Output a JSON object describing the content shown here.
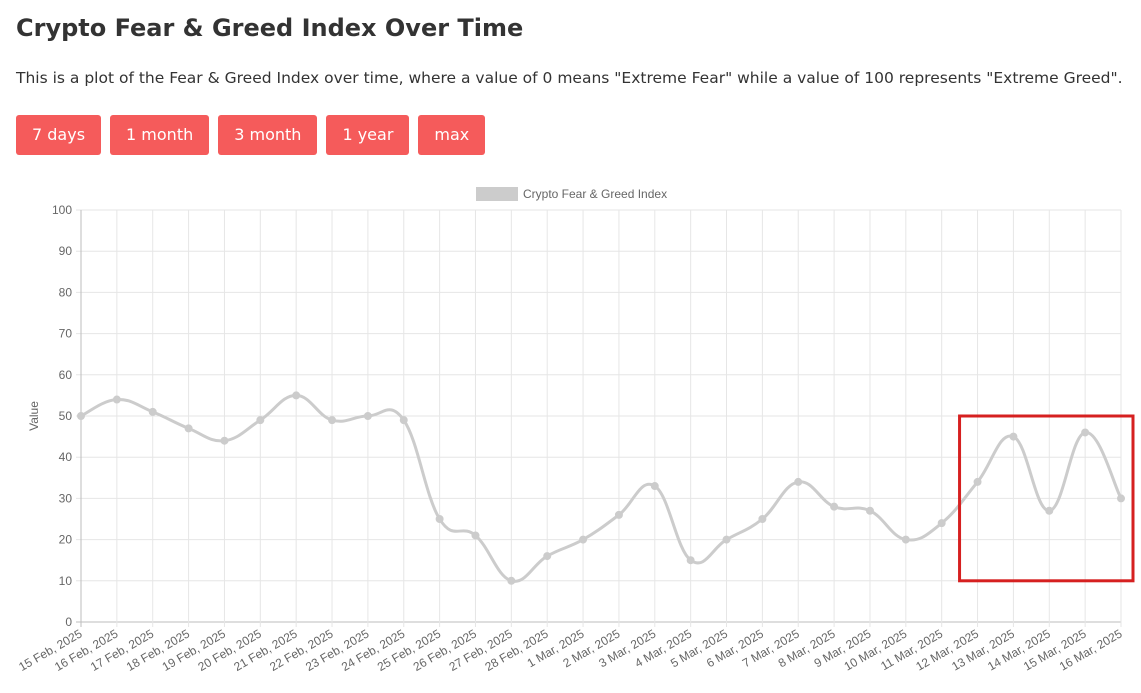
{
  "page": {
    "title": "Crypto Fear & Greed Index Over Time",
    "description": "This is a plot of the Fear & Greed Index over time, where a value of 0 means \"Extreme Fear\" while a value of 100 represents \"Extreme Greed\"."
  },
  "range_buttons": [
    {
      "label": "7 days"
    },
    {
      "label": "1 month"
    },
    {
      "label": "3 month"
    },
    {
      "label": "1 year"
    },
    {
      "label": "max"
    }
  ],
  "colors": {
    "button_bg": "#f55b5b",
    "line": "#cccccc",
    "point": "#cccccc",
    "grid": "#e6e6e6",
    "highlight_box": "#d62020"
  },
  "chart_data": {
    "type": "line",
    "ylabel": "Value",
    "ylim": [
      0,
      100
    ],
    "yticks": [
      0,
      10,
      20,
      30,
      40,
      50,
      60,
      70,
      80,
      90,
      100
    ],
    "grid": true,
    "legend_position": "top-center",
    "categories": [
      "15 Feb, 2025",
      "16 Feb, 2025",
      "17 Feb, 2025",
      "18 Feb, 2025",
      "19 Feb, 2025",
      "20 Feb, 2025",
      "21 Feb, 2025",
      "22 Feb, 2025",
      "23 Feb, 2025",
      "24 Feb, 2025",
      "25 Feb, 2025",
      "26 Feb, 2025",
      "27 Feb, 2025",
      "28 Feb, 2025",
      "1 Mar, 2025",
      "2 Mar, 2025",
      "3 Mar, 2025",
      "4 Mar, 2025",
      "5 Mar, 2025",
      "6 Mar, 2025",
      "7 Mar, 2025",
      "8 Mar, 2025",
      "9 Mar, 2025",
      "10 Mar, 2025",
      "11 Mar, 2025",
      "12 Mar, 2025",
      "13 Mar, 2025",
      "14 Mar, 2025",
      "15 Mar, 2025",
      "16 Mar, 2025"
    ],
    "series": [
      {
        "name": "Crypto Fear & Greed Index",
        "values": [
          50,
          54,
          51,
          47,
          44,
          49,
          55,
          49,
          50,
          49,
          25,
          21,
          10,
          16,
          20,
          26,
          33,
          15,
          20,
          25,
          34,
          28,
          27,
          20,
          24,
          34,
          45,
          27,
          46,
          30
        ]
      }
    ],
    "highlight": {
      "from_category": "12 Mar, 2025",
      "to_category": "16 Mar, 2025",
      "y_range": [
        10,
        50
      ]
    }
  }
}
